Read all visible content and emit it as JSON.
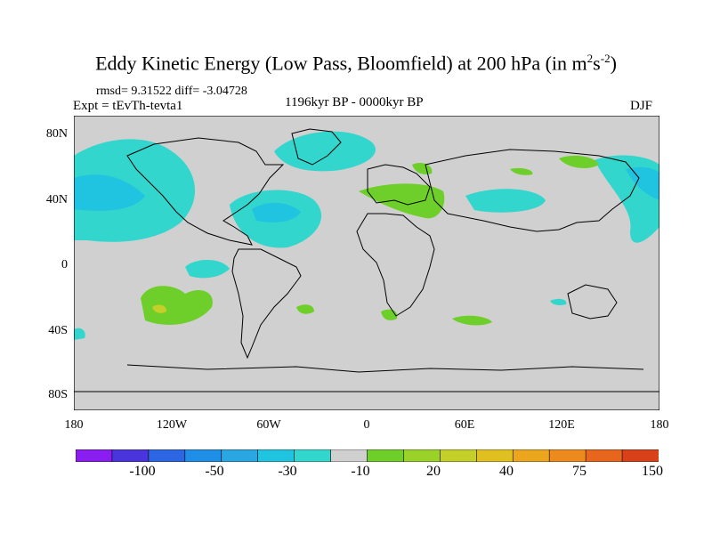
{
  "title": {
    "main": "Eddy Kinetic Energy (Low Pass, Bloomfield) at 200 hPa (in m",
    "sup1": "2",
    "mid": "s",
    "sup2": "-2",
    "end": ")"
  },
  "stats": "rmsd= 9.31522 diff= -3.04728",
  "experiment": "Expt = tEvTh-tevta1",
  "period": "1196kyr BP - 0000kyr BP",
  "season": "DJF",
  "lat_ticks": [
    "80N",
    "40N",
    "0",
    "40S",
    "80S"
  ],
  "lon_ticks": [
    "180",
    "120W",
    "60W",
    "0",
    "60E",
    "120E",
    "180"
  ],
  "colorbar": {
    "colors": [
      "#8a1df0",
      "#4a35dd",
      "#2c66e3",
      "#1f8ee6",
      "#2aa7e3",
      "#21c4e0",
      "#32d6cd",
      "#d0d0d0",
      "#6fcf2a",
      "#9ad22a",
      "#c4cf2a",
      "#e0c020",
      "#eba61e",
      "#ec8a1e",
      "#e8651e",
      "#d9411a"
    ],
    "labels": [
      "-100",
      "-50",
      "-30",
      "-10",
      "20",
      "40",
      "75",
      "150"
    ]
  },
  "colors": {
    "ocean_land": "#d0d0d0",
    "coast": "#000000"
  }
}
